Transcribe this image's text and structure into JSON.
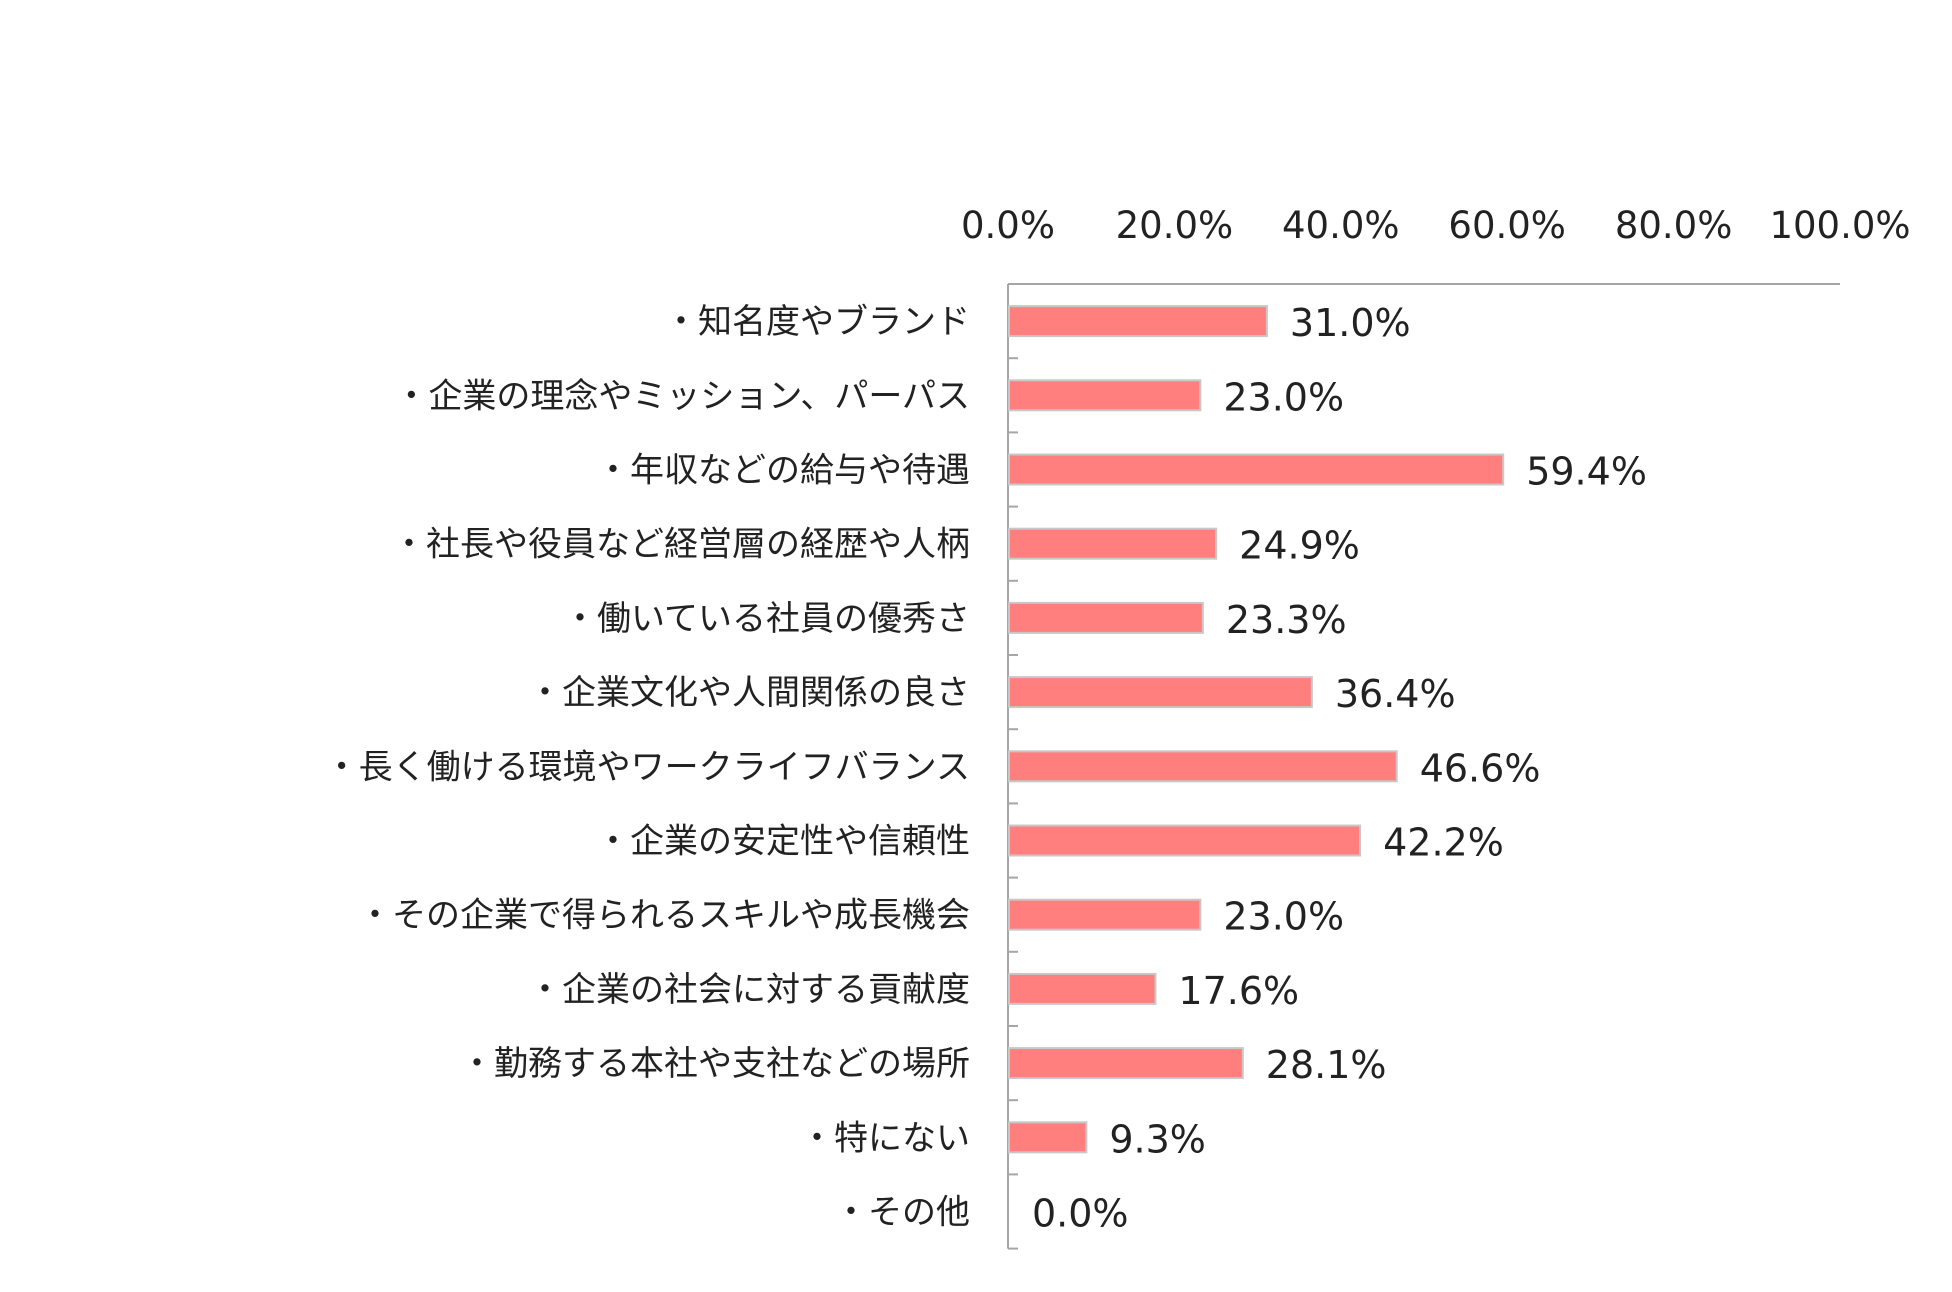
{
  "chart_data": {
    "type": "bar",
    "orientation": "horizontal",
    "categories": [
      "・知名度やブランド",
      "・企業の理念やミッション、パーパス",
      "・年収などの給与や待遇",
      "・社長や役員など経営層の経歴や人柄",
      "・働いている社員の優秀さ",
      "・企業文化や人間関係の良さ",
      "・長く働ける環境やワークライフバランス",
      "・企業の安定性や信頼性",
      "・その企業で得られるスキルや成長機会",
      "・企業の社会に対する貢献度",
      "・勤務する本社や支社などの場所",
      "・特にない",
      "・その他"
    ],
    "values": [
      31.0,
      23.0,
      59.4,
      24.9,
      23.3,
      36.4,
      46.6,
      42.2,
      23.0,
      17.6,
      28.1,
      9.3,
      0.0
    ],
    "value_labels": [
      "31.0%",
      "23.0%",
      "59.4%",
      "24.9%",
      "23.3%",
      "36.4%",
      "46.6%",
      "42.2%",
      "23.0%",
      "17.6%",
      "28.1%",
      "9.3%",
      "0.0%"
    ],
    "x_ticks": [
      0,
      20,
      40,
      60,
      80,
      100
    ],
    "x_tick_labels": [
      "0.0%",
      "20.0%",
      "40.0%",
      "60.0%",
      "80.0%",
      "100.0%"
    ],
    "xlim": [
      0,
      100
    ],
    "x_axis_position": "top",
    "grid": false,
    "legend": "none",
    "title": "",
    "xlabel": "",
    "ylabel": "",
    "bar_color": "#ff7f7f",
    "bar_border_color": "#c8c8c8"
  }
}
